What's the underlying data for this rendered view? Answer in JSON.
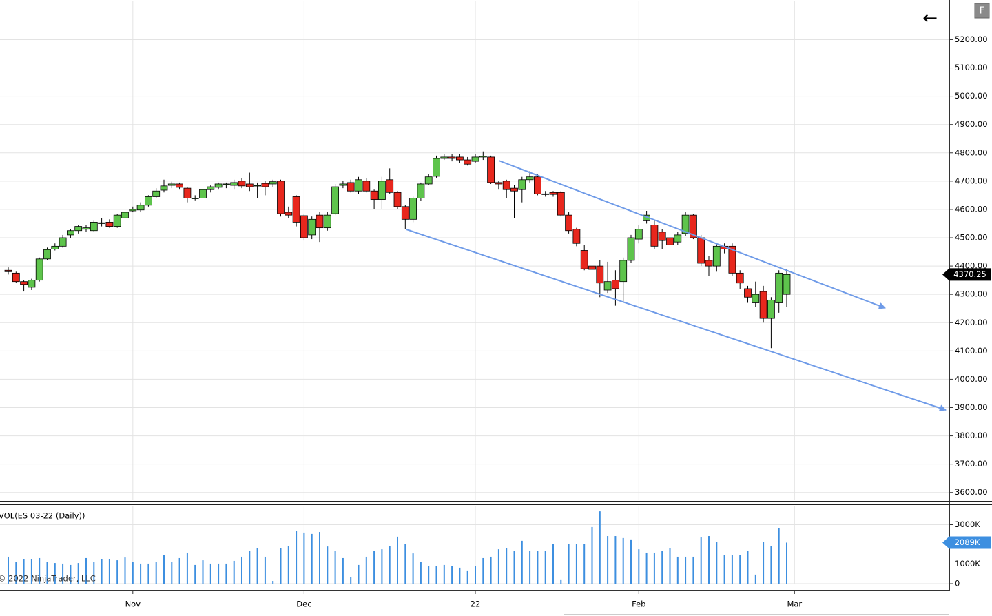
{
  "toolbar": {
    "back": "←",
    "toggle": "F"
  },
  "chart_data": [
    {
      "type": "candlestick",
      "categories": [
        null,
        null,
        null,
        null,
        null,
        null,
        null,
        null,
        null,
        null,
        null,
        null,
        null,
        null,
        null,
        null,
        "Nov",
        null,
        null,
        null,
        null,
        null,
        null,
        null,
        null,
        null,
        null,
        null,
        null,
        null,
        null,
        null,
        null,
        null,
        null,
        null,
        null,
        null,
        "Dec",
        null,
        null,
        null,
        null,
        null,
        null,
        null,
        null,
        null,
        null,
        null,
        null,
        null,
        null,
        null,
        null,
        null,
        null,
        null,
        null,
        null,
        "22",
        null,
        null,
        null,
        null,
        null,
        null,
        null,
        null,
        null,
        null,
        null,
        null,
        null,
        null,
        null,
        null,
        null,
        null,
        null,
        null,
        "Feb",
        null,
        null,
        null,
        null,
        null,
        null,
        null,
        null,
        null,
        null,
        null,
        null,
        null,
        null,
        null,
        null,
        null,
        null,
        null,
        "Mar"
      ],
      "open": [
        4385,
        4375,
        4345,
        4325,
        4350,
        4425,
        4460,
        4470,
        4510,
        4525,
        4530,
        4525,
        4550,
        4555,
        4540,
        4570,
        4595,
        4598,
        4615,
        4645,
        4668,
        4685,
        4690,
        4675,
        4638,
        4640,
        4670,
        4678,
        4688,
        4685,
        4700,
        4690,
        4683,
        4692,
        4690,
        4700,
        4590,
        4645,
        4578,
        4510,
        4580,
        4535,
        4585,
        4685,
        4695,
        4665,
        4700,
        4665,
        4635,
        4705,
        4660,
        4610,
        4565,
        4640,
        4690,
        4717,
        4780,
        4785,
        4785,
        4775,
        4770,
        4785,
        4785,
        4695,
        4700,
        4675,
        4670,
        4705,
        4715,
        4655,
        4660,
        4660,
        4580,
        4530,
        4455,
        4400,
        4400,
        4315,
        4350,
        4345,
        4420,
        4495,
        4560,
        4545,
        4520,
        4500,
        4485,
        4515,
        4580,
        4500,
        4420,
        4400,
        4470,
        4470,
        4375,
        4320,
        4270,
        4310,
        4215,
        4270,
        4300,
        null
      ],
      "high": [
        4395,
        4380,
        4350,
        4355,
        4430,
        4465,
        4480,
        4510,
        4530,
        4545,
        4545,
        4560,
        4570,
        4565,
        4585,
        4595,
        4610,
        4625,
        4650,
        4675,
        4705,
        4698,
        4695,
        4680,
        4650,
        4675,
        4685,
        4695,
        4695,
        4705,
        4710,
        4730,
        4695,
        4700,
        4705,
        4705,
        4610,
        4650,
        4585,
        4575,
        4590,
        4590,
        4690,
        4700,
        4705,
        4715,
        4710,
        4670,
        4715,
        4745,
        4665,
        4615,
        4645,
        4695,
        4725,
        4790,
        4795,
        4795,
        4795,
        4785,
        4795,
        4805,
        4790,
        4700,
        4705,
        4685,
        4715,
        4735,
        4725,
        4665,
        4665,
        4665,
        4590,
        4535,
        4475,
        4405,
        4420,
        4415,
        4385,
        4430,
        4510,
        4545,
        4595,
        4560,
        4530,
        4510,
        4520,
        4590,
        4585,
        4510,
        4435,
        4480,
        4480,
        4480,
        4385,
        4330,
        4345,
        4330,
        4290,
        4385,
        4390,
        null
      ],
      "low": [
        4370,
        4340,
        4310,
        4315,
        4345,
        4420,
        4455,
        4465,
        4500,
        4515,
        4520,
        4520,
        4540,
        4535,
        4535,
        4565,
        4590,
        4590,
        4610,
        4640,
        4660,
        4675,
        4670,
        4625,
        4632,
        4635,
        4660,
        4670,
        4675,
        4670,
        4675,
        4665,
        4640,
        4650,
        4680,
        4575,
        4570,
        4540,
        4490,
        4495,
        4485,
        4525,
        4580,
        4675,
        4660,
        4655,
        4660,
        4600,
        4600,
        4655,
        4600,
        4530,
        4555,
        4630,
        4685,
        4712,
        4775,
        4770,
        4765,
        4755,
        4765,
        4775,
        4690,
        4670,
        4640,
        4570,
        4625,
        4695,
        4650,
        4645,
        4645,
        4575,
        4515,
        4470,
        4385,
        4210,
        4290,
        4305,
        4260,
        4275,
        4410,
        4480,
        4550,
        4460,
        4460,
        4465,
        4475,
        4505,
        4495,
        4400,
        4365,
        4380,
        4445,
        4365,
        4320,
        4270,
        4255,
        4200,
        4110,
        4235,
        4255,
        null
      ],
      "close": [
        4380,
        4345,
        4335,
        4350,
        4425,
        4458,
        4470,
        4500,
        4525,
        4540,
        4535,
        4555,
        4553,
        4540,
        4580,
        4590,
        4600,
        4615,
        4645,
        4665,
        4683,
        4690,
        4678,
        4640,
        4640,
        4670,
        4680,
        4690,
        4690,
        4695,
        4683,
        4680,
        4685,
        4680,
        4698,
        4585,
        4580,
        4555,
        4500,
        4565,
        4535,
        4580,
        4680,
        4690,
        4665,
        4705,
        4665,
        4635,
        4700,
        4660,
        4610,
        4565,
        4640,
        4690,
        4715,
        4780,
        4785,
        4780,
        4775,
        4760,
        4785,
        4788,
        4695,
        4690,
        4670,
        4665,
        4705,
        4715,
        4655,
        4653,
        4653,
        4580,
        4525,
        4480,
        4390,
        4388,
        4340,
        4345,
        4320,
        4420,
        4500,
        4530,
        4580,
        4470,
        4490,
        4475,
        4510,
        4580,
        4500,
        4410,
        4400,
        4470,
        4460,
        4375,
        4340,
        4290,
        4300,
        4215,
        4280,
        4375,
        4370.25,
        null
      ],
      "up_color": "#5ec44c",
      "down_color": "#e8271d",
      "ylim": [
        3575,
        5335
      ],
      "yticks": [
        {
          "value": 3600,
          "label": "3600.00"
        },
        {
          "value": 3700,
          "label": "3700.00"
        },
        {
          "value": 3800,
          "label": "3800.00"
        },
        {
          "value": 3900,
          "label": "3900.00"
        },
        {
          "value": 4000,
          "label": "4000.00"
        },
        {
          "value": 4100,
          "label": "4100.00"
        },
        {
          "value": 4200,
          "label": "4200.00"
        },
        {
          "value": 4300,
          "label": "4300.00"
        },
        {
          "value": 4400,
          "label": "4400.00"
        },
        {
          "value": 4500,
          "label": "4500.00"
        },
        {
          "value": 4600,
          "label": "4600.00"
        },
        {
          "value": 4700,
          "label": "4700.00"
        },
        {
          "value": 4800,
          "label": "4800.00"
        },
        {
          "value": 4900,
          "label": "4900.00"
        },
        {
          "value": 5000,
          "label": "5000.00"
        },
        {
          "value": 5100,
          "label": "5100.00"
        },
        {
          "value": 5200,
          "label": "5200.00"
        }
      ],
      "last_price": 4370.25,
      "grid": true
    },
    {
      "type": "bar",
      "title": "VOL(ES 03-22 (Daily))",
      "annotation": "© 2022 NinjaTrader, LLC",
      "color": "#3d8fe0",
      "values": [
        1370000,
        1120000,
        1230000,
        1260000,
        1300000,
        1120000,
        1050000,
        1020000,
        950000,
        1050000,
        1300000,
        1120000,
        1230000,
        1230000,
        1190000,
        1330000,
        1090000,
        1020000,
        1020000,
        1090000,
        1440000,
        1120000,
        1300000,
        1580000,
        950000,
        1190000,
        1020000,
        1020000,
        1020000,
        1160000,
        1370000,
        1650000,
        1820000,
        1370000,
        140000,
        1820000,
        1930000,
        2700000,
        2600000,
        2530000,
        2630000,
        1890000,
        1650000,
        1300000,
        320000,
        950000,
        1370000,
        1650000,
        1750000,
        1930000,
        2390000,
        2000000,
        1540000,
        1120000,
        910000,
        910000,
        950000,
        880000,
        810000,
        670000,
        910000,
        1300000,
        1370000,
        1750000,
        1790000,
        1650000,
        2180000,
        1650000,
        1650000,
        1650000,
        2000000,
        180000,
        2000000,
        2000000,
        2000000,
        2880000,
        3680000,
        2420000,
        2420000,
        2320000,
        2250000,
        1750000,
        1580000,
        1580000,
        1650000,
        1820000,
        1370000,
        1370000,
        1370000,
        2350000,
        2420000,
        2140000,
        1470000,
        1470000,
        1470000,
        1650000,
        460000,
        2110000,
        1930000,
        2810000,
        2089000,
        null
      ],
      "ylim": [
        0,
        3930000
      ],
      "yticks": [
        0,
        {
          "value": 1000000,
          "label": "1000K"
        },
        {
          "value": 3000000,
          "label": "3000K"
        }
      ],
      "last_value": {
        "value": 2089000,
        "label": "2089K"
      },
      "grid": true
    }
  ]
}
